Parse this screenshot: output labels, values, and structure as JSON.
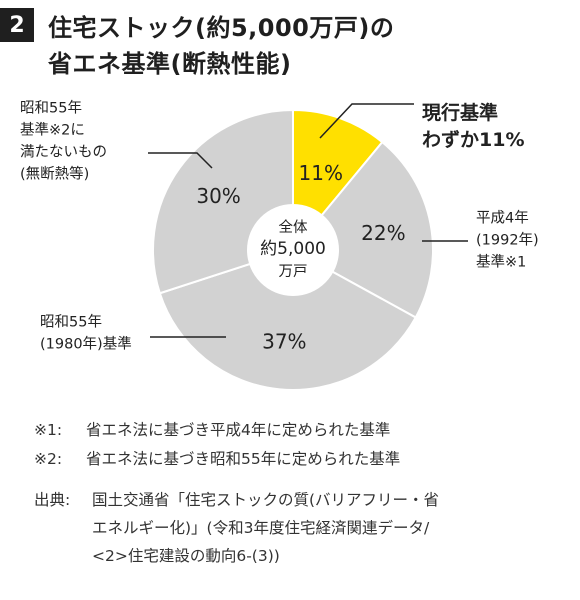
{
  "header": {
    "number": "2",
    "title_line1": "住宅ストック(約5,000万戸)の",
    "title_line2": "省エネ基準(断熱性能)"
  },
  "chart_data": {
    "type": "pie",
    "center_label": [
      "全体",
      "約5,000",
      "万戸"
    ],
    "slices": [
      {
        "value": 11,
        "label": "11%",
        "color": "#ffe000",
        "annotation": [
          "現行基準",
          "わずか11%"
        ],
        "highlight": true
      },
      {
        "value": 22,
        "label": "22%",
        "color": "#d2d2d2",
        "annotation": [
          "平成4年",
          "(1992年)",
          "基準※1"
        ],
        "highlight": false
      },
      {
        "value": 37,
        "label": "37%",
        "color": "#d2d2d2",
        "annotation": [
          "昭和55年",
          "(1980年)基準"
        ],
        "highlight": false
      },
      {
        "value": 30,
        "label": "30%",
        "color": "#d2d2d2",
        "annotation": [
          "昭和55年",
          "基準※2に",
          "満たないもの",
          "(無断熱等)"
        ],
        "highlight": false
      }
    ],
    "border_color": "#ffffff"
  },
  "notes": [
    {
      "mark": "※1:",
      "text": "省エネ法に基づき平成4年に定められた基準"
    },
    {
      "mark": "※2:",
      "text": "省エネ法に基づき昭和55年に定められた基準"
    }
  ],
  "source": {
    "label": "出典:",
    "lines": [
      "国土交通省「住宅ストックの質(バリアフリー・省",
      "エネルギー化)」(令和3年度住宅経済関連データ/",
      "<2>住宅建設の動向6-(3))"
    ]
  }
}
